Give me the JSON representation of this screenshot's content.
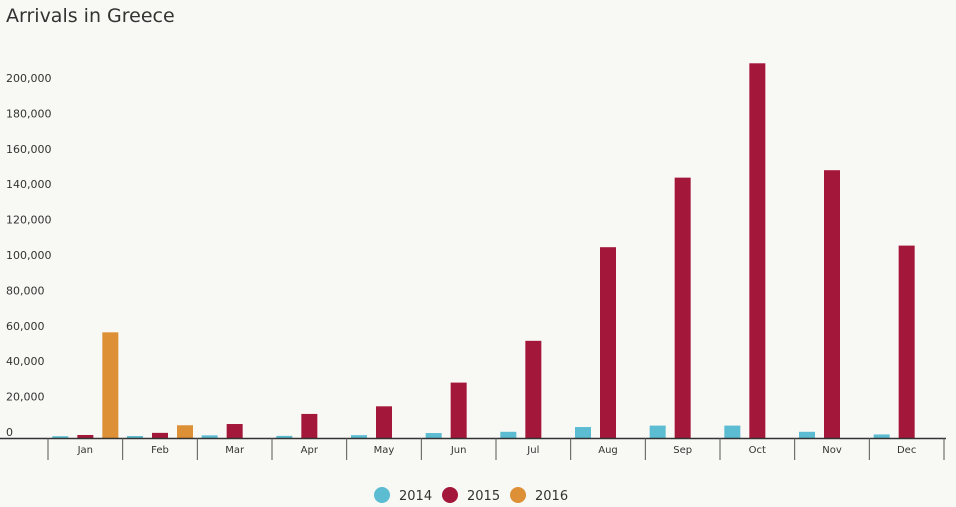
{
  "chart_data": {
    "type": "bar",
    "title": "Arrivals in Greece",
    "xlabel": "",
    "ylabel": "",
    "categories": [
      "Jan",
      "Feb",
      "Mar",
      "Apr",
      "May",
      "Jun",
      "Jul",
      "Aug",
      "Sep",
      "Oct",
      "Nov",
      "Dec"
    ],
    "series": [
      {
        "name": "2014",
        "color": "#5bbcd2",
        "values": [
          1000,
          1100,
          1500,
          1200,
          1600,
          2800,
          3500,
          6200,
          7000,
          7000,
          3500,
          2000
        ]
      },
      {
        "name": "2015",
        "color": "#a3173a",
        "values": [
          1700,
          2900,
          7900,
          13600,
          17900,
          31300,
          54900,
          107800,
          147100,
          211700,
          151300,
          108700
        ]
      },
      {
        "name": "2016",
        "color": "#dd9035",
        "values": [
          59700,
          7200,
          null,
          null,
          null,
          null,
          null,
          null,
          null,
          null,
          null,
          null
        ]
      }
    ],
    "ylim": [
      0,
      210000
    ],
    "yticks": [
      0,
      20000,
      40000,
      60000,
      80000,
      100000,
      120000,
      140000,
      160000,
      180000,
      200000
    ],
    "ytick_labels": [
      "0",
      "20,000",
      "40,000",
      "60,000",
      "80,000",
      "100,000",
      "120,000",
      "140,000",
      "160,000",
      "180,000",
      "200,000"
    ],
    "grid": false,
    "legend_position": "bottom"
  }
}
